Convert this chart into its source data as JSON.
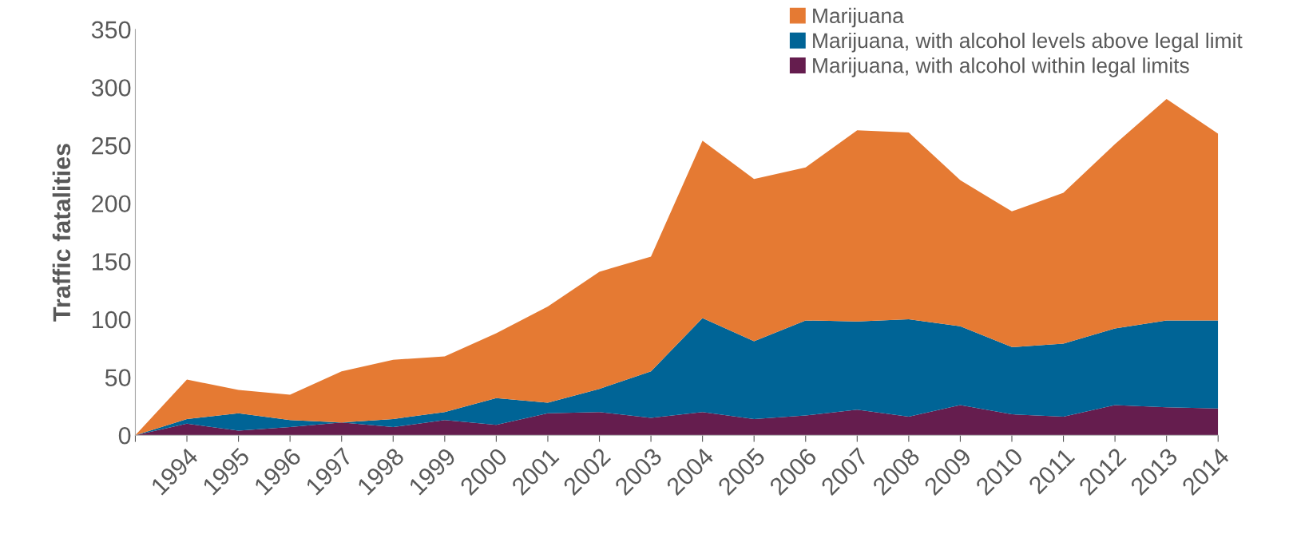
{
  "chart_data": {
    "type": "area",
    "stacked": true,
    "ylabel": "Traffic fatalities",
    "categories": [
      null,
      "1994",
      "1995",
      "1996",
      "1997",
      "1998",
      "1999",
      "2000",
      "2001",
      "2002",
      "2003",
      "2004",
      "2005",
      "2006",
      "2007",
      "2008",
      "2009",
      "2010",
      "2011",
      "2012",
      "2013",
      "2014"
    ],
    "series": [
      {
        "name": "Marijuana, with alcohol within legal limits",
        "color": "#651d4e",
        "values": [
          0,
          10,
          4,
          7,
          11,
          7,
          13,
          9,
          19,
          20,
          15,
          20,
          14,
          17,
          22,
          16,
          26,
          18,
          16,
          26,
          24,
          23
        ]
      },
      {
        "name": "Marijuana, with alcohol levels above legal limit",
        "color": "#006496",
        "values": [
          0,
          4,
          15,
          6,
          0,
          7,
          7,
          23,
          9,
          20,
          40,
          81,
          67,
          82,
          76,
          84,
          68,
          58,
          63,
          66,
          75,
          76
        ]
      },
      {
        "name": "Marijuana",
        "color": "#e57a33",
        "values": [
          0,
          34,
          20,
          22,
          44,
          51,
          48,
          56,
          83,
          101,
          99,
          153,
          140,
          132,
          165,
          161,
          126,
          117,
          130,
          159,
          191,
          161
        ]
      }
    ],
    "ylim": [
      0,
      350
    ],
    "yticks": [
      0,
      50,
      100,
      150,
      200,
      250,
      300,
      350
    ],
    "grid": false,
    "legend": "top right"
  }
}
